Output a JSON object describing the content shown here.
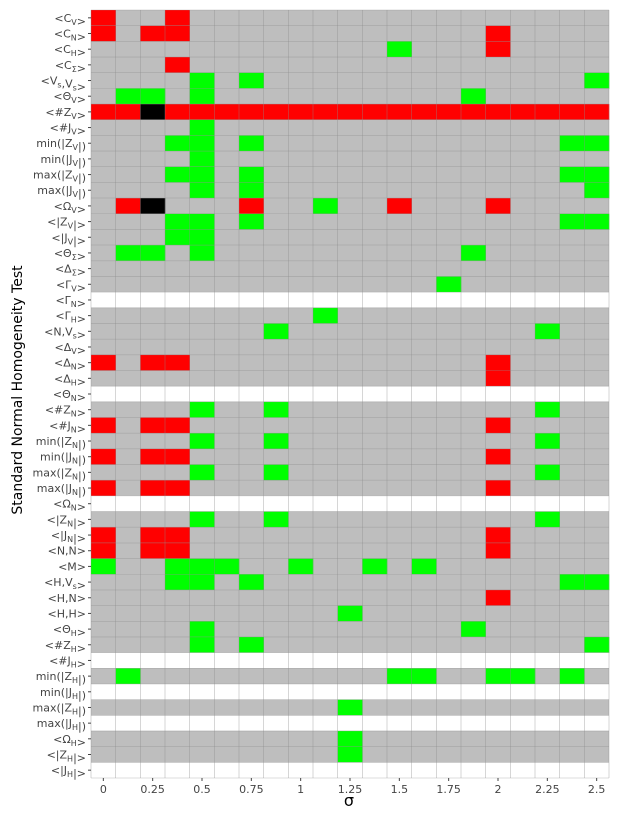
{
  "chart_data": {
    "type": "heatmap",
    "xlabel": "σ",
    "ylabel": "Standard Normal Homogeneity Test",
    "x_ticks": [
      "0",
      "0.25",
      "0.5",
      "0.75",
      "1",
      "1.25",
      "1.5",
      "1.75",
      "2",
      "2.25",
      "2.5"
    ],
    "x_values": [
      0,
      0.125,
      0.25,
      0.375,
      0.5,
      0.625,
      0.75,
      0.875,
      1,
      1.125,
      1.25,
      1.375,
      1.5,
      1.625,
      1.75,
      1.875,
      2,
      2.125,
      2.25,
      2.375,
      2.5
    ],
    "rows": [
      {
        "label": "<C_V>",
        "cells": {
          "0": "r",
          "3": "r"
        }
      },
      {
        "label": "<C_N>",
        "cells": {
          "0": "r",
          "2": "r",
          "3": "r",
          "16": "r"
        }
      },
      {
        "label": "<C_H>",
        "cells": {
          "12": "g",
          "16": "r"
        }
      },
      {
        "label": "<C_Σ>",
        "cells": {
          "3": "r"
        }
      },
      {
        "label": "<V_s,V_s>",
        "cells": {
          "4": "g",
          "6": "g",
          "20": "g"
        }
      },
      {
        "label": "<Θ_V>",
        "cells": {
          "1": "g",
          "2": "g",
          "4": "g",
          "15": "g"
        }
      },
      {
        "label": "<#Z_V>",
        "cells": {
          "0": "r",
          "1": "r",
          "2": "k",
          "3": "r",
          "4": "r",
          "5": "r",
          "6": "r",
          "7": "r",
          "8": "r",
          "9": "r",
          "10": "r",
          "11": "r",
          "12": "r",
          "13": "r",
          "14": "r",
          "15": "r",
          "16": "r",
          "17": "r",
          "18": "r",
          "19": "r",
          "20": "r"
        }
      },
      {
        "label": "<#J_V>",
        "cells": {
          "4": "g"
        }
      },
      {
        "label": "min(|Z_V|)",
        "cells": {
          "3": "g",
          "4": "g",
          "6": "g",
          "19": "g",
          "20": "g"
        }
      },
      {
        "label": "min(|J_V|)",
        "cells": {
          "4": "g"
        }
      },
      {
        "label": "max(|Z_V|)",
        "cells": {
          "3": "g",
          "4": "g",
          "6": "g",
          "19": "g",
          "20": "g"
        }
      },
      {
        "label": "max(|J_V|)",
        "cells": {
          "4": "g",
          "6": "g",
          "20": "g"
        }
      },
      {
        "label": "<Ω_V>",
        "cells": {
          "1": "r",
          "2": "k",
          "6": "r",
          "9": "g",
          "12": "r",
          "16": "r"
        }
      },
      {
        "label": "<|Z_V|>",
        "cells": {
          "3": "g",
          "4": "g",
          "6": "g",
          "19": "g",
          "20": "g"
        }
      },
      {
        "label": "<|J_V|>",
        "cells": {
          "3": "g",
          "4": "g"
        }
      },
      {
        "label": "<Θ_Σ>",
        "cells": {
          "1": "g",
          "2": "g",
          "4": "g",
          "15": "g"
        }
      },
      {
        "label": "<Δ_Σ>",
        "cells": {}
      },
      {
        "label": "<Γ_V>",
        "cells": {
          "14": "g"
        }
      },
      {
        "label": "<Γ_N>",
        "cells": {},
        "blank": true
      },
      {
        "label": "<Γ_H>",
        "cells": {
          "9": "g"
        }
      },
      {
        "label": "<N,V_s>",
        "cells": {
          "7": "g",
          "18": "g"
        }
      },
      {
        "label": "<Δ_V>",
        "cells": {}
      },
      {
        "label": "<Δ_N>",
        "cells": {
          "0": "r",
          "2": "r",
          "3": "r",
          "16": "r"
        }
      },
      {
        "label": "<Δ_H>",
        "cells": {
          "16": "r"
        }
      },
      {
        "label": "<Θ_N>",
        "cells": {},
        "blank": true
      },
      {
        "label": "<#Z_N>",
        "cells": {
          "4": "g",
          "7": "g",
          "18": "g"
        }
      },
      {
        "label": "<#J_N>",
        "cells": {
          "0": "r",
          "2": "r",
          "3": "r",
          "16": "r"
        }
      },
      {
        "label": "min(|Z_N|)",
        "cells": {
          "4": "g",
          "7": "g",
          "18": "g"
        }
      },
      {
        "label": "min(|J_N|)",
        "cells": {
          "0": "r",
          "2": "r",
          "3": "r",
          "16": "r"
        }
      },
      {
        "label": "max(|Z_N|)",
        "cells": {
          "4": "g",
          "7": "g",
          "18": "g"
        }
      },
      {
        "label": "max(|J_N|)",
        "cells": {
          "0": "r",
          "2": "r",
          "3": "r",
          "16": "r"
        }
      },
      {
        "label": "<Ω_N>",
        "cells": {},
        "blank": true
      },
      {
        "label": "<|Z_N|>",
        "cells": {
          "4": "g",
          "7": "g",
          "18": "g"
        }
      },
      {
        "label": "<|J_N|>",
        "cells": {
          "0": "r",
          "2": "r",
          "3": "r",
          "16": "r"
        }
      },
      {
        "label": "<N,N>",
        "cells": {
          "0": "r",
          "2": "r",
          "3": "r",
          "16": "r"
        }
      },
      {
        "label": "<M>",
        "cells": {
          "0": "g",
          "3": "g",
          "4": "g",
          "5": "g",
          "8": "g",
          "11": "g",
          "13": "g"
        }
      },
      {
        "label": "<H,V_s>",
        "cells": {
          "3": "g",
          "4": "g",
          "6": "g",
          "19": "g",
          "20": "g"
        }
      },
      {
        "label": "<H,N>",
        "cells": {
          "16": "r"
        }
      },
      {
        "label": "<H,H>",
        "cells": {
          "10": "g"
        }
      },
      {
        "label": "<Θ_H>",
        "cells": {
          "4": "g",
          "15": "g"
        }
      },
      {
        "label": "<#Z_H>",
        "cells": {
          "4": "g",
          "6": "g",
          "20": "g"
        }
      },
      {
        "label": "<#J_H>",
        "cells": {},
        "blank": true
      },
      {
        "label": "min(|Z_H|)",
        "cells": {
          "1": "g",
          "12": "g",
          "13": "g",
          "16": "g",
          "17": "g",
          "19": "g"
        }
      },
      {
        "label": "min(|J_H|)",
        "cells": {},
        "blank": true
      },
      {
        "label": "max(|Z_H|)",
        "cells": {
          "10": "g"
        }
      },
      {
        "label": "max(|J_H|)",
        "cells": {},
        "blank": true
      },
      {
        "label": "<Ω_H>",
        "cells": {
          "10": "g"
        }
      },
      {
        "label": "<|Z_H|>",
        "cells": {
          "10": "g"
        }
      },
      {
        "label": "<|J_H|>",
        "cells": {},
        "blank": true
      }
    ]
  },
  "colors": {
    "r": "#ff0000",
    "g": "#00ff00",
    "k": "#000000",
    "default": "#bebebe",
    "blank": "#ffffff",
    "panel_grid": "#8c8c8c",
    "tick_text": "#444444"
  }
}
